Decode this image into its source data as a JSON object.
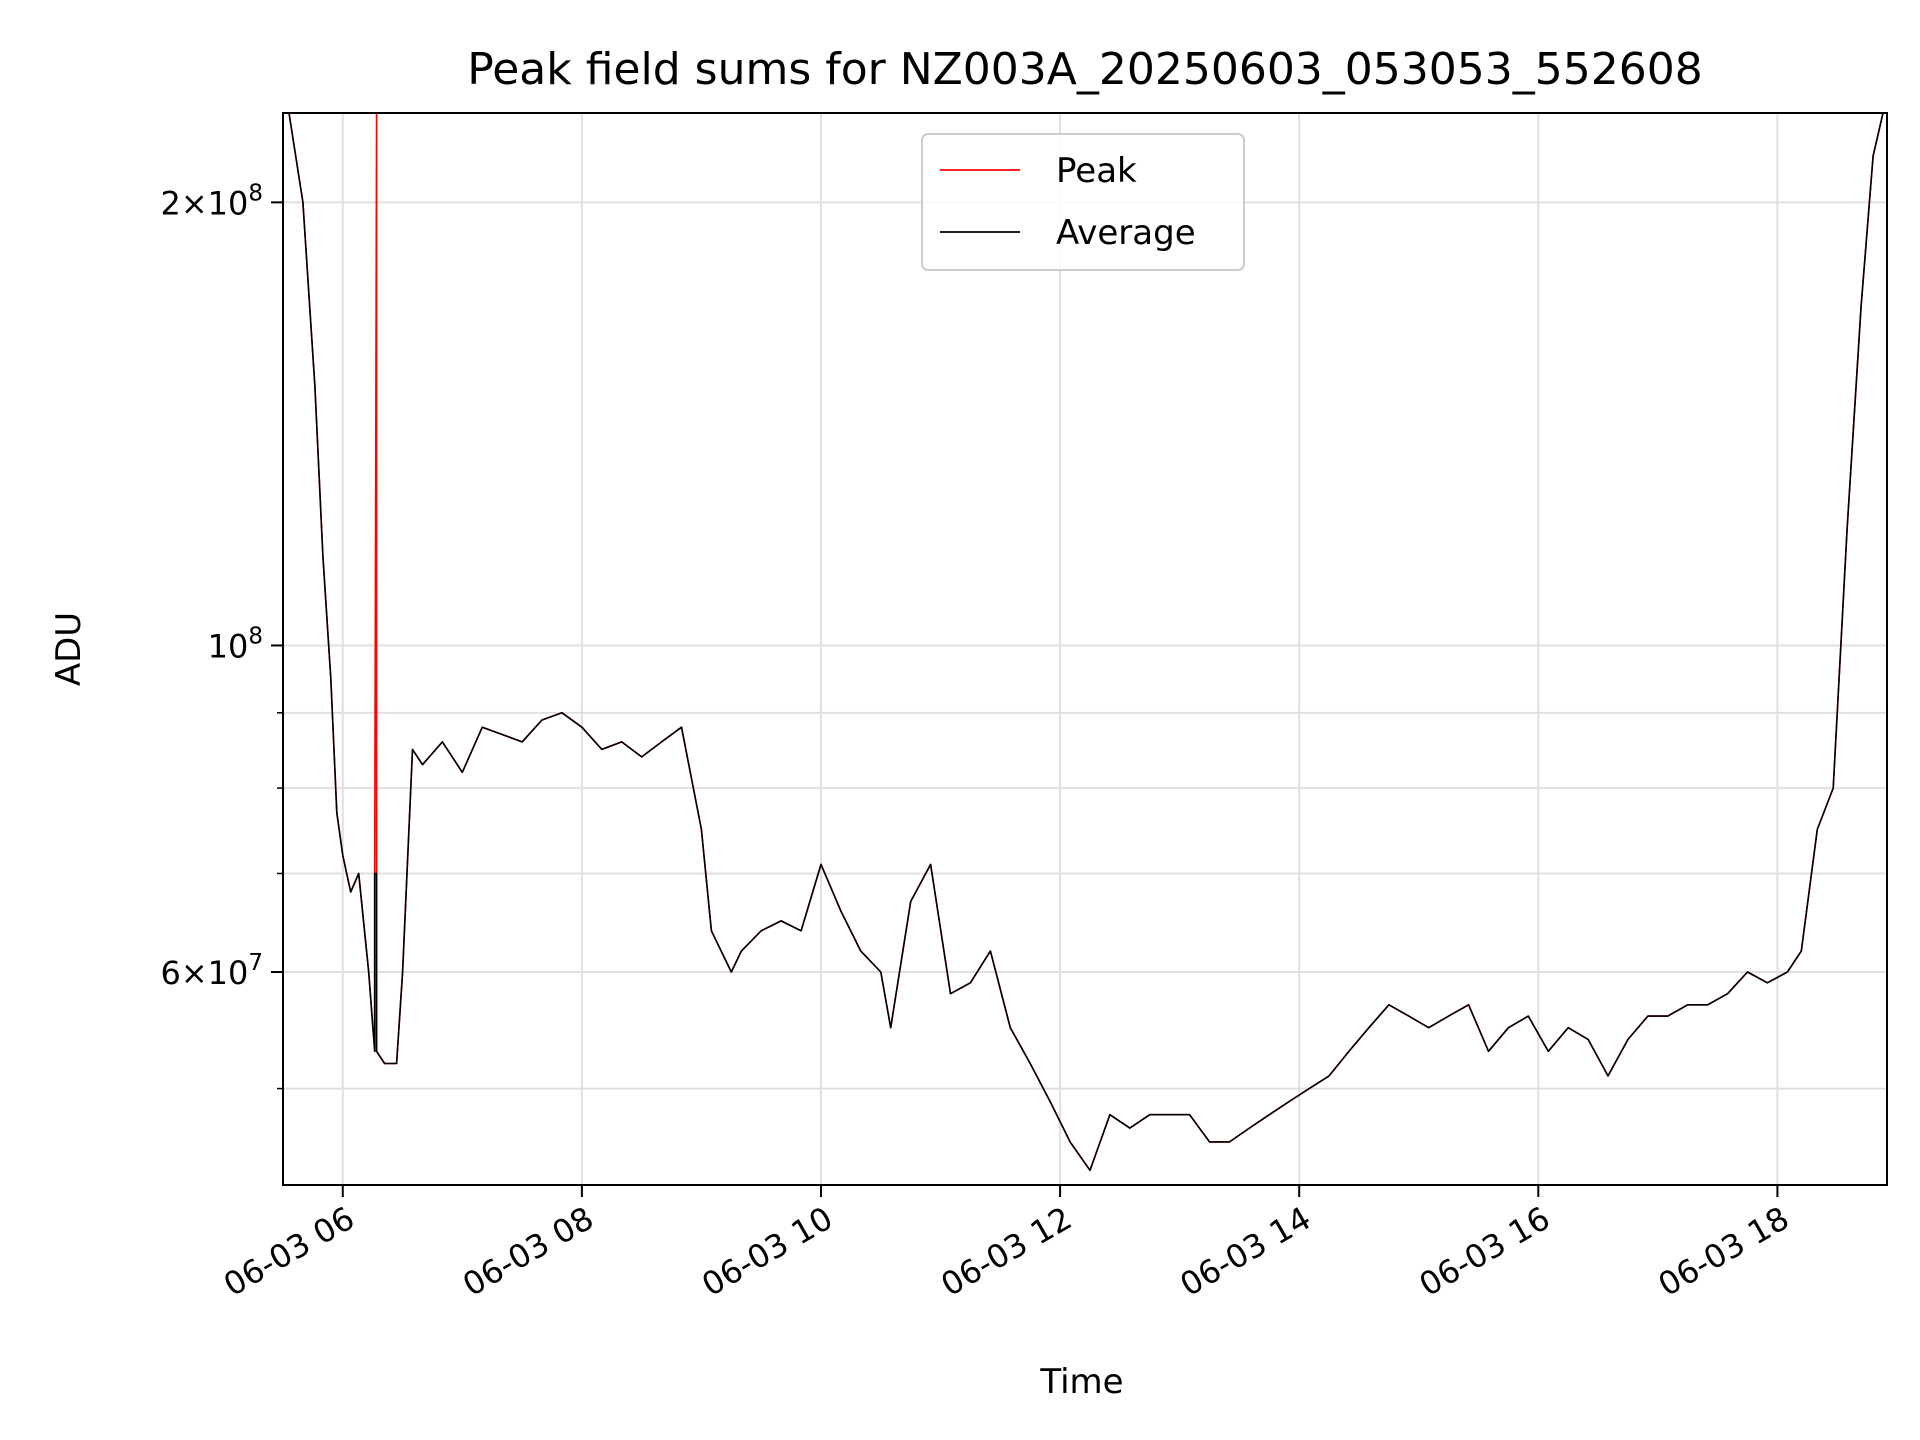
{
  "chart_data": {
    "type": "line",
    "title": "Peak field sums for NZ003A_20250603_053053_552608",
    "xlabel": "Time",
    "ylabel": "ADU",
    "y_scale": "log",
    "x_range": [
      "2025-06-03 05:30",
      "2025-06-03 18:55"
    ],
    "ylim": [
      43000000,
      230000000
    ],
    "grid": true,
    "legend_position": "upper center",
    "x_ticks": [
      {
        "time": "2025-06-03 06:00",
        "label": "06-03 06"
      },
      {
        "time": "2025-06-03 08:00",
        "label": "06-03 08"
      },
      {
        "time": "2025-06-03 10:00",
        "label": "06-03 10"
      },
      {
        "time": "2025-06-03 12:00",
        "label": "06-03 12"
      },
      {
        "time": "2025-06-03 14:00",
        "label": "06-03 14"
      },
      {
        "time": "2025-06-03 16:00",
        "label": "06-03 16"
      },
      {
        "time": "2025-06-03 18:00",
        "label": "06-03 18"
      }
    ],
    "y_major_ticks": [
      {
        "value": 60000000,
        "mantissa": "6",
        "exponent": "7"
      },
      {
        "value": 100000000,
        "mantissa": "",
        "exponent": "8"
      },
      {
        "value": 200000000,
        "mantissa": "2",
        "exponent": "8"
      }
    ],
    "y_minor_ticks": [
      50000000,
      70000000,
      80000000,
      90000000
    ],
    "series": [
      {
        "name": "Peak",
        "color": "#ff0000",
        "x": [
          "2025-06-03 05:33",
          "2025-06-03 05:40",
          "2025-06-03 05:46",
          "2025-06-03 05:50",
          "2025-06-03 05:54",
          "2025-06-03 05:57",
          "2025-06-03 06:00",
          "2025-06-03 06:04",
          "2025-06-03 06:08",
          "2025-06-03 06:13",
          "2025-06-03 06:16",
          "2025-06-03 06:16",
          "2025-06-03 06:17",
          "2025-06-03 06:17",
          "2025-06-03 06:21",
          "2025-06-03 06:27",
          "2025-06-03 06:30",
          "2025-06-03 06:35",
          "2025-06-03 06:40",
          "2025-06-03 06:50",
          "2025-06-03 07:00",
          "2025-06-03 07:10",
          "2025-06-03 07:20",
          "2025-06-03 07:30",
          "2025-06-03 07:40",
          "2025-06-03 07:50",
          "2025-06-03 08:00",
          "2025-06-03 08:10",
          "2025-06-03 08:20",
          "2025-06-03 08:30",
          "2025-06-03 08:40",
          "2025-06-03 08:50",
          "2025-06-03 09:00",
          "2025-06-03 09:05",
          "2025-06-03 09:15",
          "2025-06-03 09:20",
          "2025-06-03 09:30",
          "2025-06-03 09:40",
          "2025-06-03 09:50",
          "2025-06-03 10:00",
          "2025-06-03 10:10",
          "2025-06-03 10:20",
          "2025-06-03 10:30",
          "2025-06-03 10:35",
          "2025-06-03 10:45",
          "2025-06-03 10:55",
          "2025-06-03 11:05",
          "2025-06-03 11:15",
          "2025-06-03 11:25",
          "2025-06-03 11:35",
          "2025-06-03 11:45",
          "2025-06-03 11:55",
          "2025-06-03 12:05",
          "2025-06-03 12:15",
          "2025-06-03 12:25",
          "2025-06-03 12:35",
          "2025-06-03 12:45",
          "2025-06-03 12:55",
          "2025-06-03 13:05",
          "2025-06-03 13:15",
          "2025-06-03 13:25",
          "2025-06-03 13:35",
          "2025-06-03 13:45",
          "2025-06-03 13:55",
          "2025-06-03 14:05",
          "2025-06-03 14:15",
          "2025-06-03 14:25",
          "2025-06-03 14:35",
          "2025-06-03 14:45",
          "2025-06-03 14:55",
          "2025-06-03 15:05",
          "2025-06-03 15:15",
          "2025-06-03 15:25",
          "2025-06-03 15:35",
          "2025-06-03 15:45",
          "2025-06-03 15:55",
          "2025-06-03 16:05",
          "2025-06-03 16:15",
          "2025-06-03 16:25",
          "2025-06-03 16:35",
          "2025-06-03 16:45",
          "2025-06-03 16:55",
          "2025-06-03 17:05",
          "2025-06-03 17:15",
          "2025-06-03 17:25",
          "2025-06-03 17:35",
          "2025-06-03 17:45",
          "2025-06-03 17:55",
          "2025-06-03 18:05",
          "2025-06-03 18:12",
          "2025-06-03 18:20",
          "2025-06-03 18:28",
          "2025-06-03 18:35",
          "2025-06-03 18:42",
          "2025-06-03 18:48",
          "2025-06-03 18:53"
        ],
        "y": [
          230000000,
          200000000,
          150000000,
          115000000,
          95000000,
          77000000,
          72000000,
          68000000,
          70000000,
          60000000,
          53000000,
          70000000,
          230000000,
          53000000,
          52000000,
          52000000,
          60000000,
          85000000,
          83000000,
          86000000,
          82000000,
          88000000,
          87000000,
          86000000,
          89000000,
          90000000,
          88000000,
          85000000,
          86000000,
          84000000,
          86000000,
          88000000,
          75000000,
          64000000,
          60000000,
          62000000,
          64000000,
          65000000,
          64000000,
          71000000,
          66000000,
          62000000,
          60000000,
          55000000,
          67000000,
          71000000,
          58000000,
          59000000,
          62000000,
          55000000,
          52000000,
          49000000,
          46000000,
          44000000,
          48000000,
          47000000,
          48000000,
          48000000,
          48000000,
          46000000,
          46000000,
          47000000,
          48000000,
          49000000,
          50000000,
          51000000,
          53000000,
          55000000,
          57000000,
          56000000,
          55000000,
          56000000,
          57000000,
          53000000,
          55000000,
          56000000,
          53000000,
          55000000,
          54000000,
          51000000,
          54000000,
          56000000,
          56000000,
          57000000,
          57000000,
          58000000,
          60000000,
          59000000,
          60000000,
          62000000,
          75000000,
          80000000,
          120000000,
          170000000,
          215000000,
          230000000
        ]
      },
      {
        "name": "Average",
        "color": "#000000",
        "x": [
          "2025-06-03 05:33",
          "2025-06-03 05:40",
          "2025-06-03 05:46",
          "2025-06-03 05:50",
          "2025-06-03 05:54",
          "2025-06-03 05:57",
          "2025-06-03 06:00",
          "2025-06-03 06:04",
          "2025-06-03 06:08",
          "2025-06-03 06:13",
          "2025-06-03 06:16",
          "2025-06-03 06:16",
          "2025-06-03 06:17",
          "2025-06-03 06:17",
          "2025-06-03 06:21",
          "2025-06-03 06:27",
          "2025-06-03 06:30",
          "2025-06-03 06:35",
          "2025-06-03 06:40",
          "2025-06-03 06:50",
          "2025-06-03 07:00",
          "2025-06-03 07:10",
          "2025-06-03 07:20",
          "2025-06-03 07:30",
          "2025-06-03 07:40",
          "2025-06-03 07:50",
          "2025-06-03 08:00",
          "2025-06-03 08:10",
          "2025-06-03 08:20",
          "2025-06-03 08:30",
          "2025-06-03 08:40",
          "2025-06-03 08:50",
          "2025-06-03 09:00",
          "2025-06-03 09:05",
          "2025-06-03 09:15",
          "2025-06-03 09:20",
          "2025-06-03 09:30",
          "2025-06-03 09:40",
          "2025-06-03 09:50",
          "2025-06-03 10:00",
          "2025-06-03 10:10",
          "2025-06-03 10:20",
          "2025-06-03 10:30",
          "2025-06-03 10:35",
          "2025-06-03 10:45",
          "2025-06-03 10:55",
          "2025-06-03 11:05",
          "2025-06-03 11:15",
          "2025-06-03 11:25",
          "2025-06-03 11:35",
          "2025-06-03 11:45",
          "2025-06-03 11:55",
          "2025-06-03 12:05",
          "2025-06-03 12:15",
          "2025-06-03 12:25",
          "2025-06-03 12:35",
          "2025-06-03 12:45",
          "2025-06-03 12:55",
          "2025-06-03 13:05",
          "2025-06-03 13:15",
          "2025-06-03 13:25",
          "2025-06-03 13:35",
          "2025-06-03 13:45",
          "2025-06-03 13:55",
          "2025-06-03 14:05",
          "2025-06-03 14:15",
          "2025-06-03 14:25",
          "2025-06-03 14:35",
          "2025-06-03 14:45",
          "2025-06-03 14:55",
          "2025-06-03 15:05",
          "2025-06-03 15:15",
          "2025-06-03 15:25",
          "2025-06-03 15:35",
          "2025-06-03 15:45",
          "2025-06-03 15:55",
          "2025-06-03 16:05",
          "2025-06-03 16:15",
          "2025-06-03 16:25",
          "2025-06-03 16:35",
          "2025-06-03 16:45",
          "2025-06-03 16:55",
          "2025-06-03 17:05",
          "2025-06-03 17:15",
          "2025-06-03 17:25",
          "2025-06-03 17:35",
          "2025-06-03 17:45",
          "2025-06-03 17:55",
          "2025-06-03 18:05",
          "2025-06-03 18:12",
          "2025-06-03 18:20",
          "2025-06-03 18:28",
          "2025-06-03 18:35",
          "2025-06-03 18:42",
          "2025-06-03 18:48",
          "2025-06-03 18:53"
        ],
        "y": [
          230000000,
          200000000,
          150000000,
          115000000,
          95000000,
          77000000,
          72000000,
          68000000,
          70000000,
          60000000,
          53000000,
          70000000,
          70000000,
          53000000,
          52000000,
          52000000,
          60000000,
          85000000,
          83000000,
          86000000,
          82000000,
          88000000,
          87000000,
          86000000,
          89000000,
          90000000,
          88000000,
          85000000,
          86000000,
          84000000,
          86000000,
          88000000,
          75000000,
          64000000,
          60000000,
          62000000,
          64000000,
          65000000,
          64000000,
          71000000,
          66000000,
          62000000,
          60000000,
          55000000,
          67000000,
          71000000,
          58000000,
          59000000,
          62000000,
          55000000,
          52000000,
          49000000,
          46000000,
          44000000,
          48000000,
          47000000,
          48000000,
          48000000,
          48000000,
          46000000,
          46000000,
          47000000,
          48000000,
          49000000,
          50000000,
          51000000,
          53000000,
          55000000,
          57000000,
          56000000,
          55000000,
          56000000,
          57000000,
          53000000,
          55000000,
          56000000,
          53000000,
          55000000,
          54000000,
          51000000,
          54000000,
          56000000,
          56000000,
          57000000,
          57000000,
          58000000,
          60000000,
          59000000,
          60000000,
          62000000,
          75000000,
          80000000,
          120000000,
          170000000,
          215000000,
          230000000
        ]
      }
    ]
  }
}
